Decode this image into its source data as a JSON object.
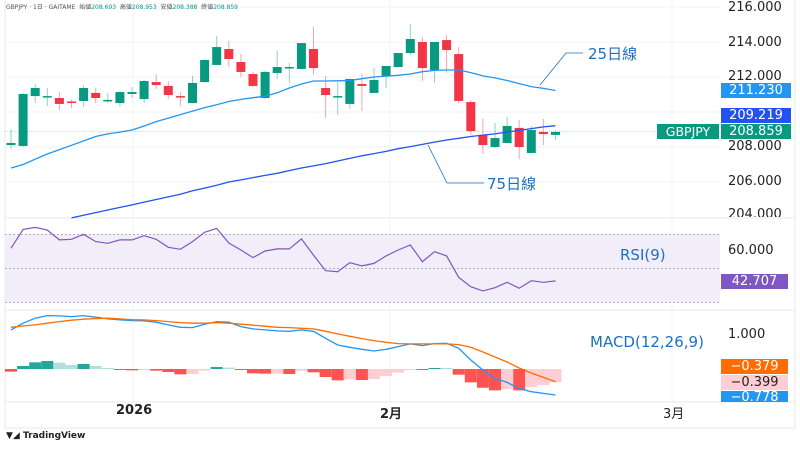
{
  "header": {
    "symbol": "GBPJPY · 1日 · GAITAME",
    "open_label": "始値",
    "open": "208.693",
    "high_label": "高値",
    "high": "208.953",
    "low_label": "安値",
    "low": "208.388",
    "close_label": "終値",
    "close": "208.859"
  },
  "price_axis": {
    "ticks": [
      "216.000",
      "214.000",
      "212.000",
      "208.000",
      "206.000",
      "204.000"
    ],
    "ma25_badge": "211.230",
    "ma75_badge": "209.219",
    "last_badge": "208.859",
    "symbol_badge": "GBPJPY"
  },
  "rsi": {
    "label": "RSI(9)",
    "tick": "60.000",
    "badge": "42.707"
  },
  "macd": {
    "label": "MACD(12,26,9)",
    "tick": "1.000",
    "signal_badge": "−0.379",
    "hist_badge": "−0.399",
    "macd_badge": "−0.778"
  },
  "annotations": {
    "ma25": "25日線",
    "ma75": "75日線"
  },
  "time_axis": [
    "2026",
    "2月",
    "3月"
  ],
  "logo": "TradingView",
  "colors": {
    "up": "#089981",
    "down": "#f23645",
    "ma25": "#2196f3",
    "ma75": "#2451f5",
    "rsi": "#7e57c2",
    "macd": "#2196f3",
    "signal": "#ff6d00",
    "hist_up_strong": "#26a69a",
    "hist_up_weak": "#b2dfdb",
    "hist_down_strong": "#ff5252",
    "hist_down_weak": "#ffcdd2"
  },
  "chart_data": {
    "type": "candlestick",
    "ohlc": [
      [
        208.11,
        209.03,
        207.89,
        208.23
      ],
      [
        208.06,
        211.09,
        208.0,
        211.03
      ],
      [
        210.91,
        211.6,
        210.51,
        211.37
      ],
      [
        210.86,
        211.37,
        210.34,
        210.91
      ],
      [
        210.8,
        211.14,
        210.11,
        210.46
      ],
      [
        210.6,
        210.69,
        210.23,
        210.54
      ],
      [
        210.63,
        211.54,
        210.29,
        211.37
      ],
      [
        211.09,
        211.37,
        210.51,
        210.8
      ],
      [
        210.63,
        211.09,
        210.51,
        210.69
      ],
      [
        210.51,
        211.2,
        210.29,
        211.14
      ],
      [
        211.03,
        211.43,
        210.8,
        211.14
      ],
      [
        210.74,
        211.83,
        210.51,
        211.77
      ],
      [
        211.71,
        212.17,
        211.31,
        211.54
      ],
      [
        211.49,
        211.77,
        210.74,
        210.97
      ],
      [
        210.91,
        211.14,
        210.34,
        210.86
      ],
      [
        210.51,
        212.06,
        210.51,
        211.66
      ],
      [
        211.71,
        213.03,
        211.71,
        212.97
      ],
      [
        212.69,
        214.34,
        212.69,
        213.71
      ],
      [
        213.6,
        214.06,
        212.57,
        213.03
      ],
      [
        212.86,
        213.31,
        212.0,
        212.29
      ],
      [
        212.17,
        212.29,
        211.43,
        211.49
      ],
      [
        210.8,
        212.34,
        210.74,
        212.29
      ],
      [
        212.23,
        213.49,
        211.89,
        212.57
      ],
      [
        212.51,
        212.8,
        211.66,
        212.57
      ],
      [
        212.46,
        213.94,
        212.46,
        213.94
      ],
      [
        213.6,
        214.86,
        212.11,
        212.51
      ],
      [
        211.37,
        212.06,
        209.66,
        210.97
      ],
      [
        210.86,
        211.71,
        209.83,
        210.91
      ],
      [
        210.46,
        211.89,
        210.17,
        211.89
      ],
      [
        211.6,
        212.17,
        210.06,
        211.49
      ],
      [
        211.09,
        212.51,
        211.09,
        211.83
      ],
      [
        212.06,
        212.63,
        211.37,
        212.63
      ],
      [
        212.57,
        213.37,
        212.57,
        213.37
      ],
      [
        213.37,
        215.03,
        213.26,
        214.17
      ],
      [
        214.0,
        214.29,
        211.77,
        212.51
      ],
      [
        212.4,
        214.0,
        211.66,
        214.0
      ],
      [
        214.11,
        214.4,
        212.23,
        213.54
      ],
      [
        213.31,
        213.71,
        210.51,
        210.63
      ],
      [
        210.57,
        210.69,
        208.69,
        208.91
      ],
      [
        208.69,
        209.6,
        207.6,
        208.11
      ],
      [
        208.0,
        209.37,
        207.94,
        208.51
      ],
      [
        208.23,
        209.71,
        208.23,
        209.2
      ],
      [
        209.09,
        209.54,
        207.31,
        208.0
      ],
      [
        207.66,
        209.2,
        207.66,
        208.97
      ],
      [
        208.86,
        209.6,
        208.11,
        208.74
      ],
      [
        208.693,
        208.953,
        208.388,
        208.859
      ]
    ],
    "ma25": [
      206.8,
      207.0,
      207.3,
      207.6,
      207.85,
      208.1,
      208.35,
      208.6,
      208.75,
      208.85,
      208.97,
      209.2,
      209.45,
      209.65,
      209.85,
      210.05,
      210.25,
      210.42,
      210.6,
      210.72,
      210.82,
      210.9,
      211.1,
      211.37,
      211.6,
      211.77,
      211.77,
      211.78,
      211.8,
      211.9,
      212.0,
      212.05,
      212.1,
      212.17,
      212.3,
      212.38,
      212.4,
      212.4,
      212.25,
      212.06,
      211.95,
      211.8,
      211.62,
      211.45,
      211.35,
      211.23
    ],
    "ma75": [
      null,
      null,
      null,
      null,
      null,
      203.95,
      204.1,
      204.25,
      204.4,
      204.55,
      204.69,
      204.85,
      205.0,
      205.15,
      205.3,
      205.5,
      205.65,
      205.82,
      206.0,
      206.12,
      206.25,
      206.38,
      206.5,
      206.65,
      206.8,
      206.92,
      207.05,
      207.2,
      207.35,
      207.5,
      207.62,
      207.75,
      207.9,
      208.02,
      208.15,
      208.28,
      208.4,
      208.5,
      208.6,
      208.68,
      208.75,
      208.85,
      208.95,
      209.05,
      209.15,
      209.22
    ],
    "rsi": [
      61.9,
      73.0,
      74.2,
      72.6,
      66.8,
      67.2,
      70.1,
      65.8,
      64.8,
      66.8,
      66.8,
      69.3,
      67.2,
      62.5,
      61.3,
      65.8,
      71.3,
      73.6,
      65.0,
      60.9,
      56.4,
      60.3,
      61.5,
      61.5,
      67.4,
      57.9,
      48.7,
      48.1,
      53.4,
      51.5,
      53.0,
      57.4,
      60.9,
      63.8,
      54.0,
      59.9,
      57.4,
      44.8,
      39.3,
      36.8,
      38.7,
      41.9,
      38.4,
      42.8,
      41.9,
      42.707
    ],
    "rsi_bands": [
      70,
      50,
      30
    ],
    "macd": [
      1.17,
      1.37,
      1.52,
      1.6,
      1.59,
      1.57,
      1.6,
      1.55,
      1.5,
      1.47,
      1.45,
      1.44,
      1.4,
      1.32,
      1.25,
      1.24,
      1.34,
      1.42,
      1.4,
      1.27,
      1.2,
      1.17,
      1.14,
      1.13,
      1.17,
      1.13,
      0.92,
      0.72,
      0.65,
      0.59,
      0.54,
      0.59,
      0.67,
      0.75,
      0.7,
      0.76,
      0.77,
      0.62,
      0.27,
      -0.03,
      -0.28,
      -0.4,
      -0.58,
      -0.68,
      -0.73,
      -0.778
    ],
    "signal": [
      1.25,
      1.29,
      1.32,
      1.37,
      1.42,
      1.46,
      1.49,
      1.51,
      1.52,
      1.5,
      1.48,
      1.47,
      1.45,
      1.42,
      1.39,
      1.37,
      1.37,
      1.39,
      1.37,
      1.34,
      1.31,
      1.28,
      1.25,
      1.24,
      1.22,
      1.2,
      1.13,
      1.05,
      0.98,
      0.91,
      0.85,
      0.8,
      0.76,
      0.75,
      0.75,
      0.75,
      0.75,
      0.73,
      0.65,
      0.51,
      0.36,
      0.21,
      0.03,
      -0.12,
      -0.25,
      -0.379
    ],
    "histogram": [
      -0.08,
      0.09,
      0.2,
      0.24,
      0.19,
      0.12,
      0.15,
      0.09,
      0.03,
      -0.03,
      -0.04,
      -0.02,
      -0.05,
      -0.09,
      -0.16,
      -0.15,
      -0.05,
      0.06,
      0.04,
      -0.02,
      -0.13,
      -0.14,
      -0.14,
      -0.15,
      -0.05,
      -0.1,
      -0.24,
      -0.34,
      -0.31,
      -0.33,
      -0.3,
      -0.21,
      -0.11,
      -0.01,
      -0.03,
      0.03,
      0.03,
      -0.17,
      -0.4,
      -0.56,
      -0.64,
      -0.6,
      -0.64,
      -0.54,
      -0.48,
      -0.399
    ],
    "price_range": [
      203.6,
      216.3
    ]
  }
}
